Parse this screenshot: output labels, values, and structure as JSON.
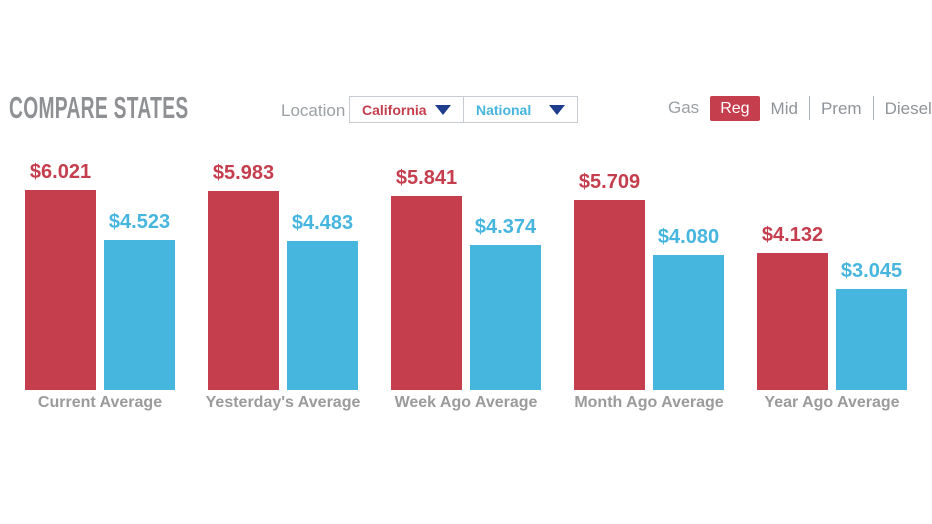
{
  "header": {
    "title": "COMPARE STATES",
    "location": {
      "label": "Location",
      "selects": [
        {
          "name": "state",
          "value": "California",
          "text_color": "#c43e4d"
        },
        {
          "name": "comparison",
          "value": "National",
          "text_color": "#47b6de"
        }
      ]
    },
    "gas": {
      "label": "Gas",
      "options": [
        {
          "label": "Reg",
          "selected": true
        },
        {
          "label": "Mid",
          "selected": false
        },
        {
          "label": "Prem",
          "selected": false
        },
        {
          "label": "Diesel",
          "selected": false
        }
      ]
    }
  },
  "colors": {
    "california_red": "#c43e4d",
    "national_blue": "#47b6de",
    "heading_gray": "#8e9093",
    "label_gray": "#9ba0a4",
    "category_gray": "#9b9b9b",
    "dropdown_arrow_navy": "#1e3e8d",
    "box_border": "#c6ccd2",
    "selected_gas_bg": "#c43e4d"
  },
  "chart_data": {
    "type": "bar",
    "title": "",
    "xlabel": "",
    "ylabel": "",
    "categories": [
      "Current Average",
      "Yesterday's Average",
      "Week Ago Average",
      "Month Ago Average",
      "Year Ago Average"
    ],
    "series": [
      {
        "name": "California",
        "color": "#c43e4d",
        "values": [
          6.021,
          5.983,
          5.841,
          5.709,
          4.132
        ],
        "labels": [
          "$6.021",
          "$5.983",
          "$5.841",
          "$5.709",
          "$4.132"
        ]
      },
      {
        "name": "National",
        "color": "#47b6de",
        "values": [
          4.523,
          4.483,
          4.374,
          4.08,
          3.045
        ],
        "labels": [
          "$4.523",
          "$4.483",
          "$4.374",
          "$4.080",
          "$3.045"
        ]
      }
    ],
    "ylim": [
      0,
      6.5
    ],
    "grid": false,
    "legend": false,
    "value_prefix": "$"
  }
}
